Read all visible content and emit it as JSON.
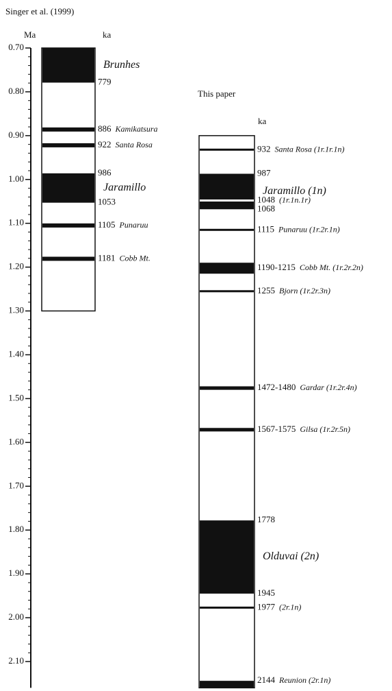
{
  "chart_data": {
    "type": "polarity_timescale",
    "y_label": "Ma",
    "ylim": [
      0.7,
      2.16
    ],
    "yticks": [
      {
        "value": 0.7,
        "label": "0.70"
      },
      {
        "value": 0.8,
        "label": "0.80"
      },
      {
        "value": 0.9,
        "label": "0.90"
      },
      {
        "value": 1.0,
        "label": "1.00"
      },
      {
        "value": 1.1,
        "label": "1.10"
      },
      {
        "value": 1.2,
        "label": "1.20"
      },
      {
        "value": 1.3,
        "label": "1.30"
      },
      {
        "value": 1.4,
        "label": "1.40"
      },
      {
        "value": 1.5,
        "label": "1.50"
      },
      {
        "value": 1.6,
        "label": "1.60"
      },
      {
        "value": 1.7,
        "label": "1.70"
      },
      {
        "value": 1.8,
        "label": "1.80"
      },
      {
        "value": 1.9,
        "label": "1.90"
      },
      {
        "value": 2.0,
        "label": "2.00"
      },
      {
        "value": 2.1,
        "label": "2.10"
      }
    ],
    "columns": [
      {
        "title": "Singer et al. (1999)",
        "unit_label": "ka",
        "range": [
          0.7,
          1.3
        ],
        "events": [
          {
            "name": "Brunhes",
            "values": [
              0.7,
              0.779
            ],
            "value_labels": [
              null,
              "779"
            ]
          },
          {
            "name": "Kamikatsura",
            "values": [
              0.886
            ],
            "value_labels": [
              "886"
            ]
          },
          {
            "name": "Santa Rosa",
            "values": [
              0.922
            ],
            "value_labels": [
              "922"
            ]
          },
          {
            "name": "Jaramillo",
            "values": [
              0.986,
              1.053
            ],
            "value_labels": [
              "986",
              "1053"
            ]
          },
          {
            "name": "Punaruu",
            "values": [
              1.105
            ],
            "value_labels": [
              "1105"
            ]
          },
          {
            "name": "Cobb Mt.",
            "values": [
              1.181
            ],
            "value_labels": [
              "1181"
            ]
          }
        ]
      },
      {
        "title": "This paper",
        "unit_label": "ka",
        "range": [
          0.9,
          2.16
        ],
        "events": [
          {
            "name": "Santa Rosa (1r.1r.1n)",
            "values": [
              0.932
            ],
            "value_labels": [
              "932"
            ]
          },
          {
            "name": "Jaramillo (1n)",
            "values": [
              0.987,
              1.068
            ],
            "value_labels": [
              "987",
              "1068"
            ]
          },
          {
            "name": "(1r.1n.1r)",
            "values": [
              1.048
            ],
            "value_labels": [
              "1048"
            ],
            "polarity": "reversed"
          },
          {
            "name": "Punaruu (1r.2r.1n)",
            "values": [
              1.115
            ],
            "value_labels": [
              "1115"
            ]
          },
          {
            "name": "Cobb Mt. (1r.2r.2n)",
            "values": [
              1.19,
              1.215
            ],
            "label": "1190-1215"
          },
          {
            "name": "Bjorn (1r.2r.3n)",
            "values": [
              1.255
            ],
            "value_labels": [
              "1255"
            ]
          },
          {
            "name": "Gardar (1r.2r.4n)",
            "values": [
              1.472,
              1.48
            ],
            "label": "1472-1480"
          },
          {
            "name": "Gilsa (1r.2r.5n)",
            "values": [
              1.567,
              1.575
            ],
            "label": "1567-1575"
          },
          {
            "name": "Olduvai (2n)",
            "values": [
              1.778,
              1.945
            ],
            "value_labels": [
              "1778",
              "1945"
            ]
          },
          {
            "name": "(2r.1n)",
            "values": [
              1.977
            ],
            "value_labels": [
              "1977"
            ]
          },
          {
            "name": "Reunion (2r.1n)",
            "values": [
              2.144,
              2.16
            ],
            "value_labels": [
              "2144",
              null
            ]
          }
        ]
      }
    ]
  }
}
